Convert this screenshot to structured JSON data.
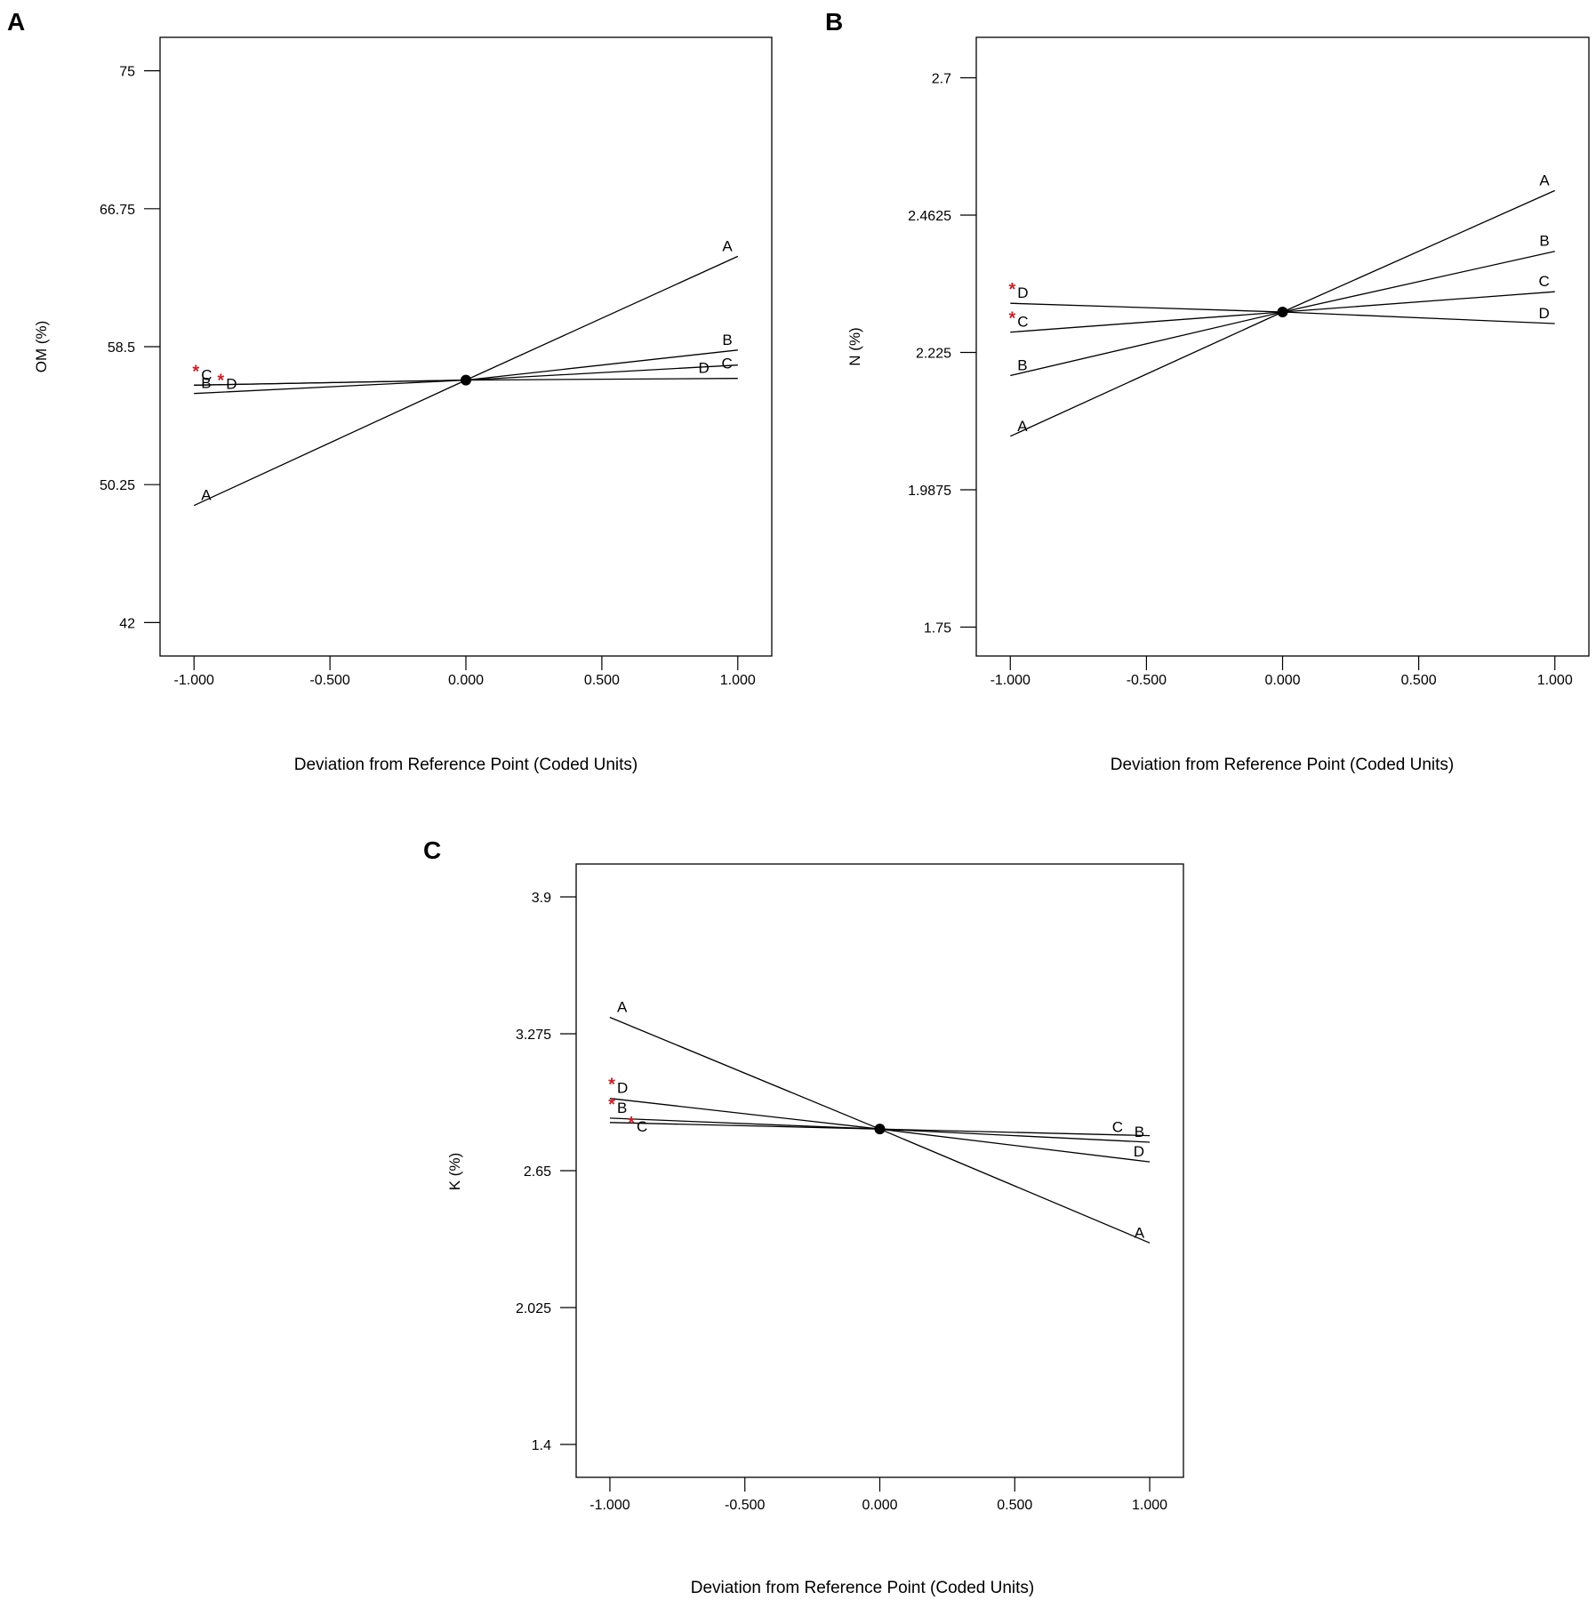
{
  "colors": {
    "line": "#000000",
    "marker": "#c0272d",
    "center": "#000000"
  },
  "chart_data": [
    {
      "type": "line",
      "panel_label": "A",
      "title": "",
      "xlabel": "Deviation from Reference Point (Coded Units)",
      "ylabel": "OM (%)",
      "xlim": [
        -1.125,
        1.125
      ],
      "ylim": [
        40,
        77
      ],
      "x_ticks": [
        -1.0,
        -0.5,
        0.0,
        0.5,
        1.0
      ],
      "x_tick_labels": [
        "-1.000",
        "-0.500",
        "0.000",
        "0.500",
        "1.000"
      ],
      "y_ticks": [
        42,
        50.25,
        58.5,
        66.75,
        75
      ],
      "y_tick_labels": [
        "42",
        "50.25",
        "58.5",
        "66.75",
        "75"
      ],
      "reference_point": {
        "x": 0,
        "y": 56.5
      },
      "series": [
        {
          "name": "A",
          "label": "A",
          "x": [
            -1,
            0,
            1
          ],
          "y": [
            49.0,
            56.5,
            63.9
          ],
          "starred": false
        },
        {
          "name": "B",
          "label": "B",
          "x": [
            -1,
            0,
            1
          ],
          "y": [
            55.7,
            56.5,
            58.3
          ],
          "starred": false
        },
        {
          "name": "C",
          "label": "C",
          "x": [
            -1,
            0,
            1
          ],
          "y": [
            56.2,
            56.5,
            57.4
          ],
          "starred": true
        },
        {
          "name": "D",
          "label": "D",
          "x": [
            -1,
            0,
            1
          ],
          "y": [
            56.2,
            56.5,
            56.6
          ],
          "starred": true
        }
      ]
    },
    {
      "type": "line",
      "panel_label": "B",
      "title": "",
      "xlabel": "Deviation from Reference Point (Coded Units)",
      "ylabel": "N (%)",
      "xlim": [
        -1.125,
        1.125
      ],
      "ylim": [
        1.7,
        2.77
      ],
      "x_ticks": [
        -1.0,
        -0.5,
        0.0,
        0.5,
        1.0
      ],
      "x_tick_labels": [
        "-1.000",
        "-0.500",
        "0.000",
        "0.500",
        "1.000"
      ],
      "y_ticks": [
        1.75,
        1.9875,
        2.225,
        2.4625,
        2.7
      ],
      "y_tick_labels": [
        "1.75",
        "1.9875",
        "2.225",
        "2.4625",
        "2.7"
      ],
      "reference_point": {
        "x": 0,
        "y": 2.295
      },
      "series": [
        {
          "name": "A",
          "label": "A",
          "x": [
            -1,
            0,
            1
          ],
          "y": [
            2.08,
            2.295,
            2.505
          ],
          "starred": false
        },
        {
          "name": "B",
          "label": "B",
          "x": [
            -1,
            0,
            1
          ],
          "y": [
            2.185,
            2.295,
            2.4
          ],
          "starred": false
        },
        {
          "name": "C",
          "label": "C",
          "x": [
            -1,
            0,
            1
          ],
          "y": [
            2.26,
            2.295,
            2.33
          ],
          "starred": true
        },
        {
          "name": "D",
          "label": "D",
          "x": [
            -1,
            0,
            1
          ],
          "y": [
            2.31,
            2.295,
            2.275
          ],
          "starred": true
        }
      ]
    },
    {
      "type": "line",
      "panel_label": "C",
      "title": "",
      "xlabel": "Deviation from Reference Point (Coded Units)",
      "ylabel": "K (%)",
      "xlim": [
        -1.125,
        1.125
      ],
      "ylim": [
        1.25,
        4.05
      ],
      "x_ticks": [
        -1.0,
        -0.5,
        0.0,
        0.5,
        1.0
      ],
      "x_tick_labels": [
        "-1.000",
        "-0.500",
        "0.000",
        "0.500",
        "1.000"
      ],
      "y_ticks": [
        1.4,
        2.025,
        2.65,
        3.275,
        3.9
      ],
      "y_tick_labels": [
        "1.4",
        "2.025",
        "2.65",
        "3.275",
        "3.9"
      ],
      "reference_point": {
        "x": 0,
        "y": 2.84
      },
      "series": [
        {
          "name": "A",
          "label": "A",
          "x": [
            -1,
            0,
            1
          ],
          "y": [
            3.35,
            2.84,
            2.32
          ],
          "starred": false
        },
        {
          "name": "B",
          "label": "B",
          "x": [
            -1,
            0,
            1
          ],
          "y": [
            2.89,
            2.84,
            2.78
          ],
          "starred": true
        },
        {
          "name": "C",
          "label": "C",
          "x": [
            -1,
            0,
            1
          ],
          "y": [
            2.87,
            2.84,
            2.81
          ],
          "starred": true
        },
        {
          "name": "D",
          "label": "D",
          "x": [
            -1,
            0,
            1
          ],
          "y": [
            2.98,
            2.84,
            2.69
          ],
          "starred": true
        }
      ]
    }
  ]
}
